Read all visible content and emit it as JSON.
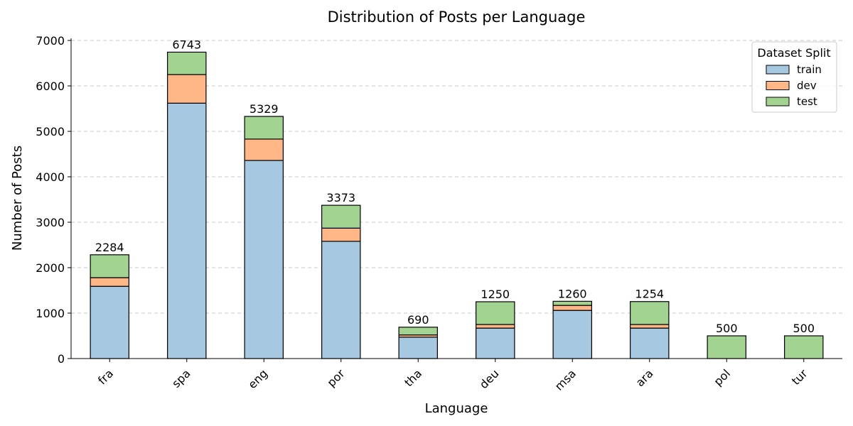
{
  "chart_data": {
    "type": "bar",
    "stacked": true,
    "title": "Distribution of Posts per Language",
    "xlabel": "Language",
    "ylabel": "Number of Posts",
    "ylim": [
      0,
      7000
    ],
    "yticks": [
      0,
      1000,
      2000,
      3000,
      4000,
      5000,
      6000,
      7000
    ],
    "grid": "y-dashed",
    "legend": {
      "title": "Dataset Split",
      "placement": "top-right"
    },
    "categories": [
      "fra",
      "spa",
      "eng",
      "por",
      "tha",
      "deu",
      "msa",
      "ara",
      "pol",
      "tur"
    ],
    "series": [
      {
        "name": "train",
        "color": "#a6c8e1",
        "values": [
          1590,
          5620,
          4360,
          2580,
          470,
          670,
          1060,
          670,
          0,
          0
        ]
      },
      {
        "name": "dev",
        "color": "#ffb787",
        "values": [
          190,
          630,
          470,
          290,
          50,
          80,
          110,
          80,
          0,
          0
        ]
      },
      {
        "name": "test",
        "color": "#a3d391",
        "values": [
          504,
          493,
          499,
          503,
          170,
          500,
          90,
          504,
          500,
          500
        ]
      }
    ],
    "totals": [
      2284,
      6743,
      5329,
      3373,
      690,
      1250,
      1260,
      1254,
      500,
      500
    ],
    "total_labels": [
      "2284",
      "6743",
      "5329",
      "3373",
      "690",
      "1250",
      "1260",
      "1254",
      "500",
      "500"
    ]
  }
}
